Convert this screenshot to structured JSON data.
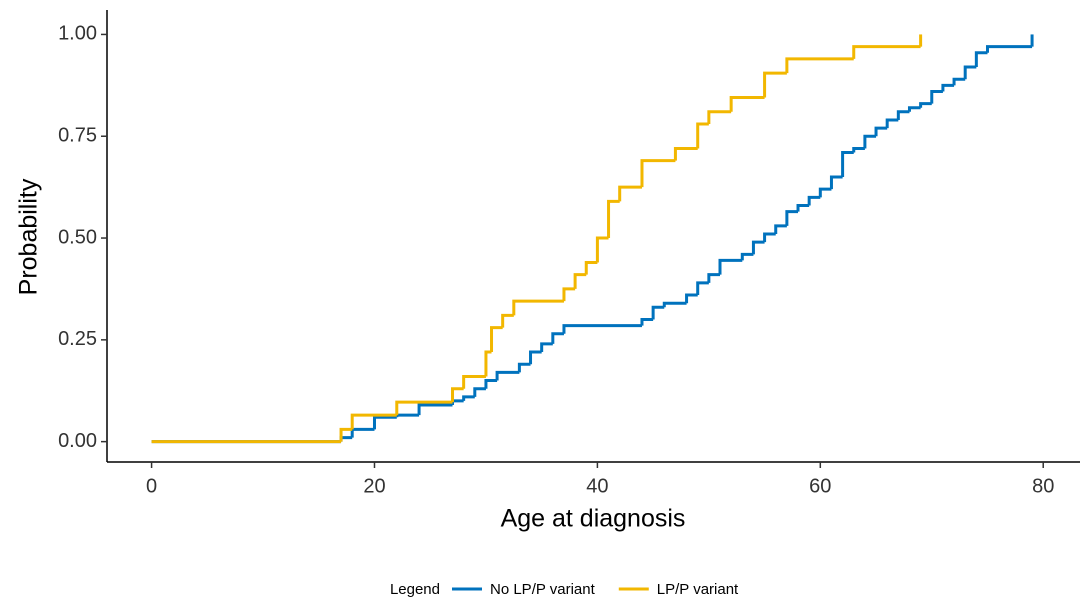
{
  "chart_data": {
    "type": "step",
    "x_label": "Age at diagnosis",
    "y_label": "Probability",
    "legend_title": "Legend",
    "legend_position": "bottom",
    "xlim": [
      -4,
      83.3
    ],
    "ylim": [
      -0.05,
      1.06
    ],
    "xticks": [
      0,
      20,
      40,
      60,
      80
    ],
    "yticks": [
      {
        "value": 0,
        "label": "0.00"
      },
      {
        "value": 0.25,
        "label": "0.25"
      },
      {
        "value": 0.5,
        "label": "0.50"
      },
      {
        "value": 0.75,
        "label": "0.75"
      },
      {
        "value": 1,
        "label": "1.00"
      }
    ],
    "grid": false,
    "series": [
      {
        "name": "No LP/P variant",
        "color": "#0072bd",
        "x": [
          0,
          17,
          18,
          20,
          22,
          24,
          27,
          28,
          29,
          30,
          31,
          33,
          34,
          35,
          36,
          37,
          44,
          45,
          46,
          48,
          49,
          50,
          51,
          53,
          54,
          55,
          56,
          57,
          58,
          59,
          60,
          61,
          62,
          63,
          64,
          65,
          66,
          67,
          68,
          69,
          70,
          71,
          72,
          73,
          74,
          75,
          79
        ],
        "values": [
          0,
          0.01,
          0.03,
          0.06,
          0.065,
          0.09,
          0.1,
          0.11,
          0.13,
          0.15,
          0.17,
          0.19,
          0.22,
          0.24,
          0.265,
          0.285,
          0.3,
          0.33,
          0.34,
          0.36,
          0.39,
          0.41,
          0.445,
          0.46,
          0.49,
          0.51,
          0.53,
          0.565,
          0.58,
          0.6,
          0.62,
          0.65,
          0.71,
          0.72,
          0.75,
          0.77,
          0.79,
          0.81,
          0.82,
          0.83,
          0.86,
          0.875,
          0.89,
          0.92,
          0.955,
          0.97,
          1.0
        ]
      },
      {
        "name": "LP/P variant",
        "color": "#f2b700",
        "x": [
          0,
          17,
          18,
          22,
          27,
          28,
          30,
          30.5,
          31.5,
          32.5,
          37,
          38,
          39,
          40,
          41,
          42,
          44,
          47,
          49,
          50,
          52,
          55,
          57,
          63,
          69
        ],
        "values": [
          0,
          0.03,
          0.065,
          0.097,
          0.13,
          0.16,
          0.22,
          0.28,
          0.31,
          0.345,
          0.375,
          0.41,
          0.44,
          0.5,
          0.59,
          0.625,
          0.69,
          0.72,
          0.78,
          0.81,
          0.845,
          0.905,
          0.94,
          0.97,
          1.0
        ]
      }
    ]
  }
}
